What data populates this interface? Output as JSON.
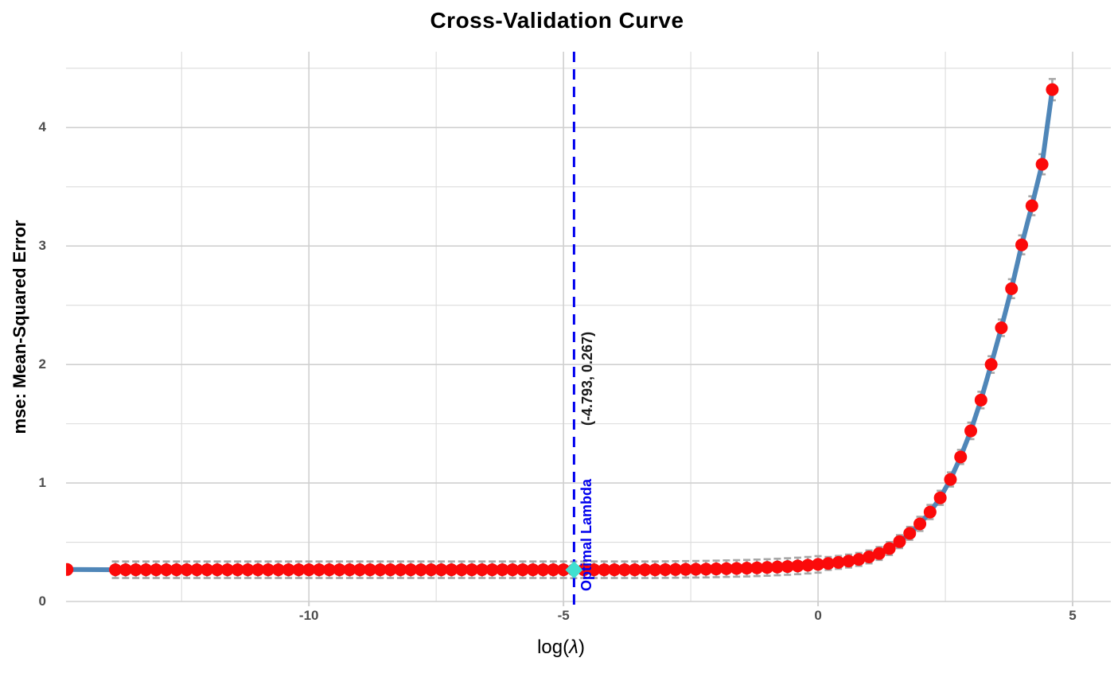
{
  "title": "Cross-Validation Curve",
  "axes": {
    "x": {
      "label": "log(λ)",
      "tick_values": [
        -10,
        -5,
        0,
        5
      ],
      "tick_labels": [
        "-10",
        "-5",
        "0",
        "5"
      ],
      "minor_grid_values": [
        -12.5,
        -7.5,
        -2.5,
        2.5
      ]
    },
    "y": {
      "label": "mse: Mean-Squared Error",
      "tick_values": [
        0,
        1,
        2,
        3,
        4
      ],
      "tick_labels": [
        "0",
        "1",
        "2",
        "3",
        "4"
      ],
      "minor_grid_values": [
        0.5,
        1.5,
        2.5,
        3.5,
        4.5
      ]
    }
  },
  "annotations": {
    "optimal_label": "Optimal Lambda",
    "optimal_coords_label": "(-4.793, 0.267)"
  },
  "colors": {
    "background": "#ffffff",
    "title": "#000000",
    "tick_label": "#4d4d4d",
    "major_grid": "#d0d0d0",
    "minor_grid": "#dcdcdc",
    "curve_line": "#4f86b8",
    "point": "#fb0a0a",
    "error_bar": "#a8a8a8",
    "optimal_line": "#0000ee",
    "optimal_marker": "#40e0d0",
    "optimal_label_text": "#0000ee",
    "optimal_coords_text": "#1a1a1a"
  },
  "chart_data": {
    "type": "line",
    "title": "Cross-Validation Curve",
    "xlabel": "log(λ)",
    "ylabel": "mse: Mean-Squared Error",
    "xlim": [
      -14.77,
      5.75
    ],
    "ylim": [
      0,
      4.64
    ],
    "grid": true,
    "legend": false,
    "series_name": "cv-mse-with-error-bars",
    "x": [
      -14.75,
      -13.8,
      -13.6,
      -13.4,
      -13.2,
      -13.0,
      -12.8,
      -12.6,
      -12.4,
      -12.2,
      -12.0,
      -11.8,
      -11.6,
      -11.4,
      -11.2,
      -11.0,
      -10.8,
      -10.6,
      -10.4,
      -10.2,
      -10.0,
      -9.8,
      -9.6,
      -9.4,
      -9.2,
      -9.0,
      -8.8,
      -8.6,
      -8.4,
      -8.2,
      -8.0,
      -7.8,
      -7.6,
      -7.4,
      -7.2,
      -7.0,
      -6.8,
      -6.6,
      -6.4,
      -6.2,
      -6.0,
      -5.8,
      -5.6,
      -5.4,
      -5.2,
      -5.0,
      -4.8,
      -4.6,
      -4.4,
      -4.2,
      -4.0,
      -3.8,
      -3.6,
      -3.4,
      -3.2,
      -3.0,
      -2.8,
      -2.6,
      -2.4,
      -2.2,
      -2.0,
      -1.8,
      -1.6,
      -1.4,
      -1.2,
      -1.0,
      -0.8,
      -0.6,
      -0.4,
      -0.2,
      0.0,
      0.2,
      0.4,
      0.6,
      0.8,
      1.0,
      1.2,
      1.4,
      1.6,
      1.8,
      2.0,
      2.2,
      2.4,
      2.6,
      2.8,
      3.0,
      3.2,
      3.4,
      3.6,
      3.8,
      4.0,
      4.2,
      4.4,
      4.6
    ],
    "y": [
      0.27,
      0.268,
      0.268,
      0.268,
      0.268,
      0.268,
      0.268,
      0.268,
      0.268,
      0.268,
      0.268,
      0.268,
      0.268,
      0.268,
      0.268,
      0.268,
      0.268,
      0.268,
      0.268,
      0.268,
      0.268,
      0.268,
      0.268,
      0.268,
      0.268,
      0.268,
      0.268,
      0.268,
      0.268,
      0.268,
      0.268,
      0.268,
      0.268,
      0.268,
      0.268,
      0.268,
      0.268,
      0.268,
      0.268,
      0.268,
      0.268,
      0.268,
      0.268,
      0.268,
      0.268,
      0.268,
      0.267,
      0.268,
      0.268,
      0.268,
      0.268,
      0.268,
      0.268,
      0.268,
      0.268,
      0.269,
      0.27,
      0.271,
      0.272,
      0.273,
      0.275,
      0.277,
      0.279,
      0.281,
      0.284,
      0.287,
      0.291,
      0.295,
      0.3,
      0.306,
      0.313,
      0.321,
      0.33,
      0.341,
      0.355,
      0.376,
      0.405,
      0.447,
      0.505,
      0.575,
      0.655,
      0.755,
      0.875,
      1.03,
      1.22,
      1.44,
      1.7,
      2.0,
      2.31,
      2.64,
      3.01,
      3.34,
      3.69,
      4.32
    ],
    "se": [
      null,
      0.07,
      0.07,
      0.07,
      0.07,
      0.07,
      0.07,
      0.07,
      0.07,
      0.07,
      0.07,
      0.07,
      0.07,
      0.07,
      0.07,
      0.07,
      0.07,
      0.07,
      0.07,
      0.07,
      0.07,
      0.07,
      0.07,
      0.07,
      0.07,
      0.07,
      0.07,
      0.07,
      0.07,
      0.07,
      0.07,
      0.07,
      0.07,
      0.07,
      0.07,
      0.07,
      0.07,
      0.07,
      0.07,
      0.07,
      0.07,
      0.07,
      0.07,
      0.07,
      0.07,
      0.07,
      0.07,
      0.07,
      0.07,
      0.07,
      0.07,
      0.07,
      0.07,
      0.07,
      0.07,
      0.07,
      0.07,
      0.07,
      0.07,
      0.07,
      0.07,
      0.07,
      0.07,
      0.07,
      0.07,
      0.07,
      0.07,
      0.07,
      0.07,
      0.07,
      0.07,
      0.055,
      0.055,
      0.055,
      0.055,
      0.055,
      0.055,
      0.055,
      0.055,
      0.055,
      0.06,
      0.06,
      0.06,
      0.06,
      0.06,
      0.07,
      0.07,
      0.07,
      0.07,
      0.08,
      0.08,
      0.08,
      0.085,
      0.09
    ],
    "optimal": {
      "x": -4.793,
      "y": 0.267
    }
  }
}
